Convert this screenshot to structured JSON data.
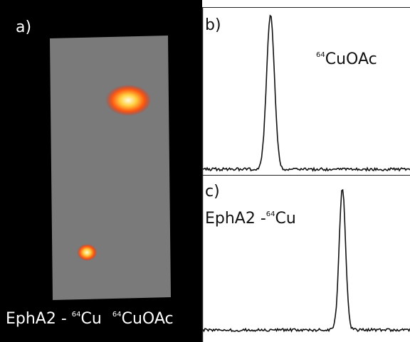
{
  "panel_a": {
    "label": "a)",
    "caption": [
      "EphA2 -",
      "64",
      "Cu",
      "64",
      "CuOAc"
    ]
  },
  "panel_b": {
    "label": "b)",
    "annotation": [
      "64",
      "CuOAc"
    ]
  },
  "panel_c": {
    "label": "c)",
    "annotation": [
      "EphA2 -",
      "64",
      "Cu"
    ]
  }
}
